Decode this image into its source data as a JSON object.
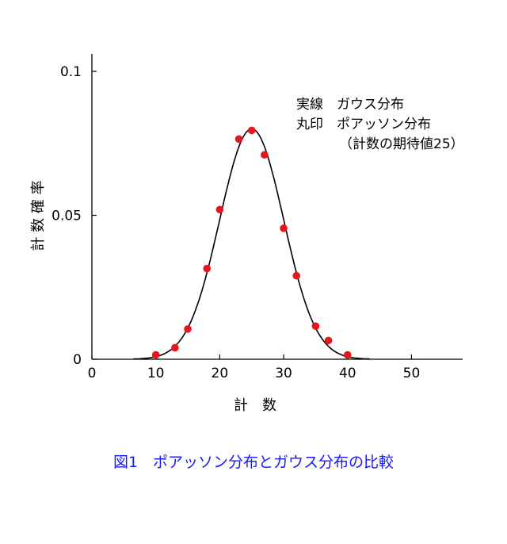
{
  "chart_data": {
    "type": "scatter",
    "xlabel": "計　数",
    "ylabel": "計 数 確 率",
    "xlim": [
      0,
      58
    ],
    "ylim": [
      0,
      0.1
    ],
    "x_ticks": [
      {
        "value": 0,
        "label": "0"
      },
      {
        "value": 10,
        "label": "10"
      },
      {
        "value": 20,
        "label": "20"
      },
      {
        "value": 30,
        "label": "30"
      },
      {
        "value": 40,
        "label": "40"
      },
      {
        "value": 50,
        "label": "50"
      }
    ],
    "y_ticks": [
      {
        "value": 0,
        "label": "0"
      },
      {
        "value": 0.05,
        "label": "0.05"
      },
      {
        "value": 0.1,
        "label": "0.1"
      }
    ],
    "legend": {
      "position": "top-right",
      "lines": [
        "実線　ガウス分布",
        "丸印　ポアッソン分布",
        "（計数の期待値25）"
      ]
    },
    "series": [
      {
        "kind": "line",
        "color": "#000000",
        "gaussian": {
          "mean": 25,
          "sigma": 5,
          "peak": 0.08
        },
        "x_range": [
          10,
          40
        ]
      },
      {
        "kind": "points",
        "color": "#e8141e",
        "x": [
          10,
          13,
          15,
          18,
          20,
          23,
          25,
          27,
          30,
          32,
          35,
          37,
          40
        ],
        "y": [
          0.0015,
          0.004,
          0.0105,
          0.0315,
          0.052,
          0.0765,
          0.0795,
          0.071,
          0.0455,
          0.029,
          0.0115,
          0.0065,
          0.0015
        ]
      }
    ]
  },
  "caption": "図1　ポアッソン分布とガウス分布の比較"
}
